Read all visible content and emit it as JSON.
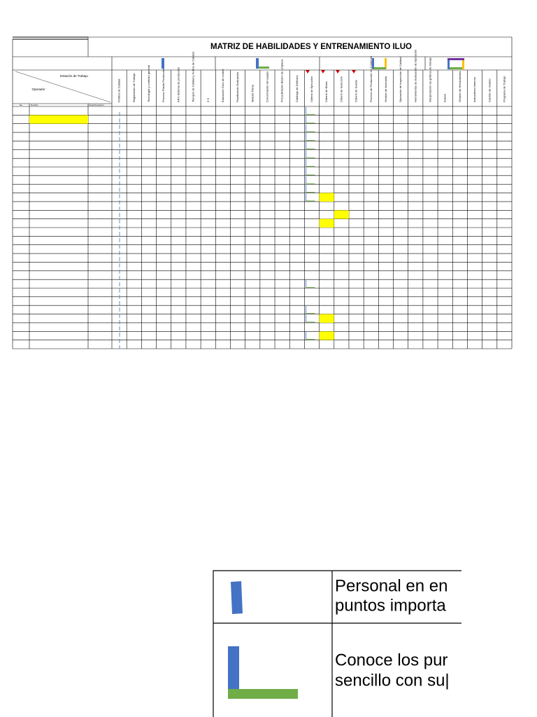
{
  "header": {
    "title": "MATRIZ DE HABILIDADES Y ENTRENAMIENTO ILUO",
    "workstation": "Estación de Trabajo",
    "operator": "Operador",
    "subheaders": [
      "No.",
      "Nombre",
      "Área/Ocupación"
    ]
  },
  "skills": [
    "Política de Calidad",
    "Reglamento de Trabajo",
    "Tecnología y contexto general",
    "Proceso Planta Producción",
    "KPIs Sistema de producción",
    "Tiempos de Calidad y Norma de Calidad",
    "5 S",
    "Educación Ciclo de control",
    "Planificación Evaluación",
    "Materia Prima",
    "Conocimiento del equipo",
    "Procedimiento Básico de Limpieza",
    "Catálogo de Defectos",
    "Criterio de Ejecución",
    "Criterio de Bolsa",
    "Criterio de Selección",
    "Criterio de Sueldo",
    "Proceso de Producción No Conforme",
    "Gestión de Anomalía",
    "Operación de Inspección de Calidad",
    "Herramientas de Evaluación de Operación",
    "Interpretación de gráficos de trabajo",
    "Kaizen",
    "Gestión de Herramientas",
    "Instructivos Internos",
    "Cambio de modelo",
    "Programa de Trabajo"
  ],
  "legend": [
    {
      "line1": "Personal en en",
      "line2": "puntos importa"
    },
    {
      "line1": "Conoce los pur",
      "line2": "sencillo con su|"
    }
  ]
}
